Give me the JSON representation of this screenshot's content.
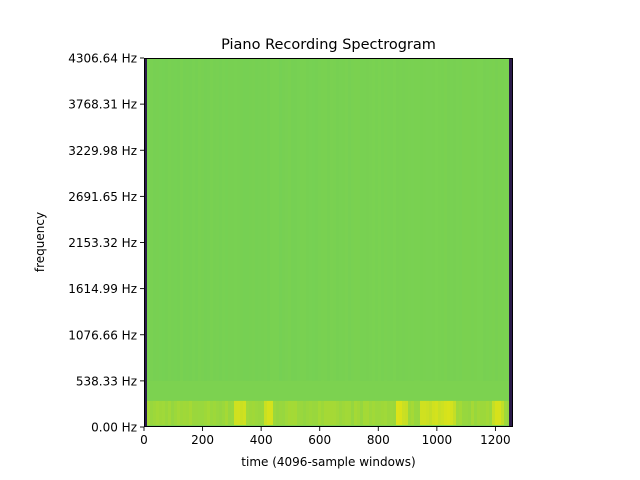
{
  "chart_data": {
    "type": "heatmap",
    "title": "Piano Recording Spectrogram",
    "xlabel": "time (4096-sample windows)",
    "ylabel": "frequency",
    "xlim": [
      0,
      1260
    ],
    "ylim": [
      0,
      4306.64
    ],
    "x_ticks": [
      0,
      200,
      400,
      600,
      800,
      1000,
      1200
    ],
    "x_tick_labels": [
      "0",
      "200",
      "400",
      "600",
      "800",
      "1000",
      "1200"
    ],
    "y_ticks": [
      0,
      538.33,
      1076.66,
      1614.99,
      2153.32,
      2691.65,
      3229.98,
      3768.31,
      4306.64
    ],
    "y_tick_labels": [
      "0.00 Hz",
      "538.33 Hz",
      "1076.66 Hz",
      "1614.99 Hz",
      "2153.32 Hz",
      "2691.65 Hz",
      "3229.98 Hz",
      "3768.31 Hz",
      "4306.64 Hz"
    ],
    "grid": false,
    "colormap": "viridis",
    "colors": {
      "background": "#7cd250",
      "darker_band": "#6ccd5a",
      "low_freq_energy": "#c2df23",
      "peak_energy": "#dde318",
      "edge_column": "#2a1a4a"
    },
    "low_freq_energy_band_hz": [
      0,
      538.33
    ],
    "loud_time_windows": [
      {
        "range": [
          300,
          340
        ],
        "intensity": 1.0
      },
      {
        "range": [
          400,
          440
        ],
        "intensity": 0.9
      },
      {
        "range": [
          860,
          900
        ],
        "intensity": 1.0
      },
      {
        "range": [
          940,
          1060
        ],
        "intensity": 0.95
      },
      {
        "range": [
          1180,
          1220
        ],
        "intensity": 0.85
      }
    ]
  }
}
